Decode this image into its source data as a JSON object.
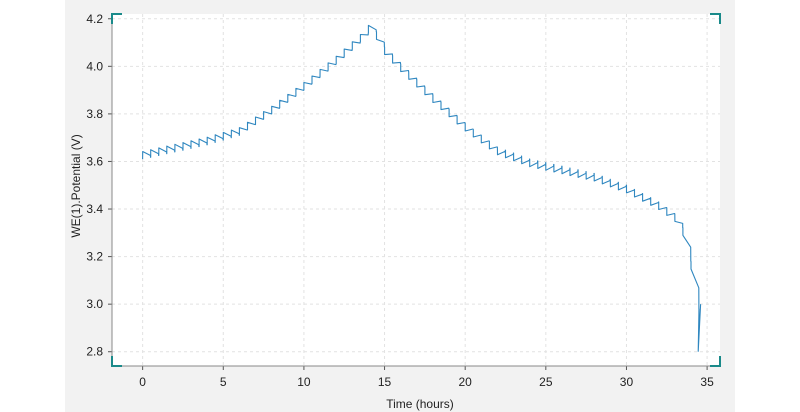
{
  "chart_data": {
    "type": "line",
    "title": "",
    "xlabel": "Time (hours)",
    "ylabel": "WE(1).Potential (V)",
    "xlim": [
      -1.9,
      35.8
    ],
    "ylim": [
      2.74,
      4.22
    ],
    "x_ticks": [
      "0",
      "5",
      "10",
      "15",
      "20",
      "25",
      "30",
      "35"
    ],
    "y_ticks": [
      "2.8",
      "3.0",
      "3.2",
      "3.4",
      "3.6",
      "3.8",
      "4.0",
      "4.2"
    ],
    "grid": true,
    "legend": "none",
    "series": [
      {
        "color": "#2f87c0",
        "pulse_period_hours": 0.5,
        "envelope_x": [
          0,
          2,
          4,
          6,
          8,
          10,
          12,
          13.8,
          14.4,
          14.6,
          16,
          18,
          20,
          22,
          24,
          26,
          28,
          30,
          32,
          33,
          33.6,
          34,
          34.3,
          34.5
        ],
        "envelope_y": [
          3.61,
          3.64,
          3.67,
          3.71,
          3.8,
          3.9,
          4.01,
          4.12,
          4.18,
          4.11,
          4.01,
          3.88,
          3.76,
          3.66,
          3.61,
          3.58,
          3.55,
          3.5,
          3.43,
          3.38,
          3.31,
          3.18,
          3.08,
          2.98
        ]
      }
    ]
  }
}
